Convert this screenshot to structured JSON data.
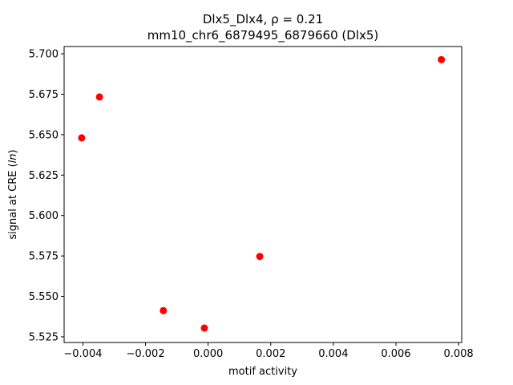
{
  "chart_data": {
    "type": "scatter",
    "title_line1": "Dlx5_Dlx4, ρ = 0.21",
    "title_line2": "mm10_chr6_6879495_6879660 (Dlx5)",
    "xlabel": "motif activity",
    "ylabel_prefix": "signal at CRE (",
    "ylabel_italic": "ln",
    "ylabel_suffix": ")",
    "xlim": [
      -0.0046,
      0.0081
    ],
    "ylim": [
      5.5215,
      5.7045
    ],
    "xticks": [
      -0.004,
      -0.002,
      0.0,
      0.002,
      0.004,
      0.006,
      0.008
    ],
    "xtick_labels": [
      "−0.004",
      "−0.002",
      "0.000",
      "0.002",
      "0.004",
      "0.006",
      "0.008"
    ],
    "yticks": [
      5.525,
      5.55,
      5.575,
      5.6,
      5.625,
      5.65,
      5.675,
      5.7
    ],
    "ytick_labels": [
      "5.525",
      "5.550",
      "5.575",
      "5.600",
      "5.625",
      "5.650",
      "5.675",
      "5.700"
    ],
    "points": [
      {
        "x": -0.00404,
        "y": 5.648
      },
      {
        "x": -0.00347,
        "y": 5.6733
      },
      {
        "x": -0.00143,
        "y": 5.5412
      },
      {
        "x": -0.00012,
        "y": 5.5304
      },
      {
        "x": 0.00165,
        "y": 5.5747
      },
      {
        "x": 0.00745,
        "y": 5.6964
      }
    ],
    "marker_color": "#ff0000",
    "grid": false
  }
}
